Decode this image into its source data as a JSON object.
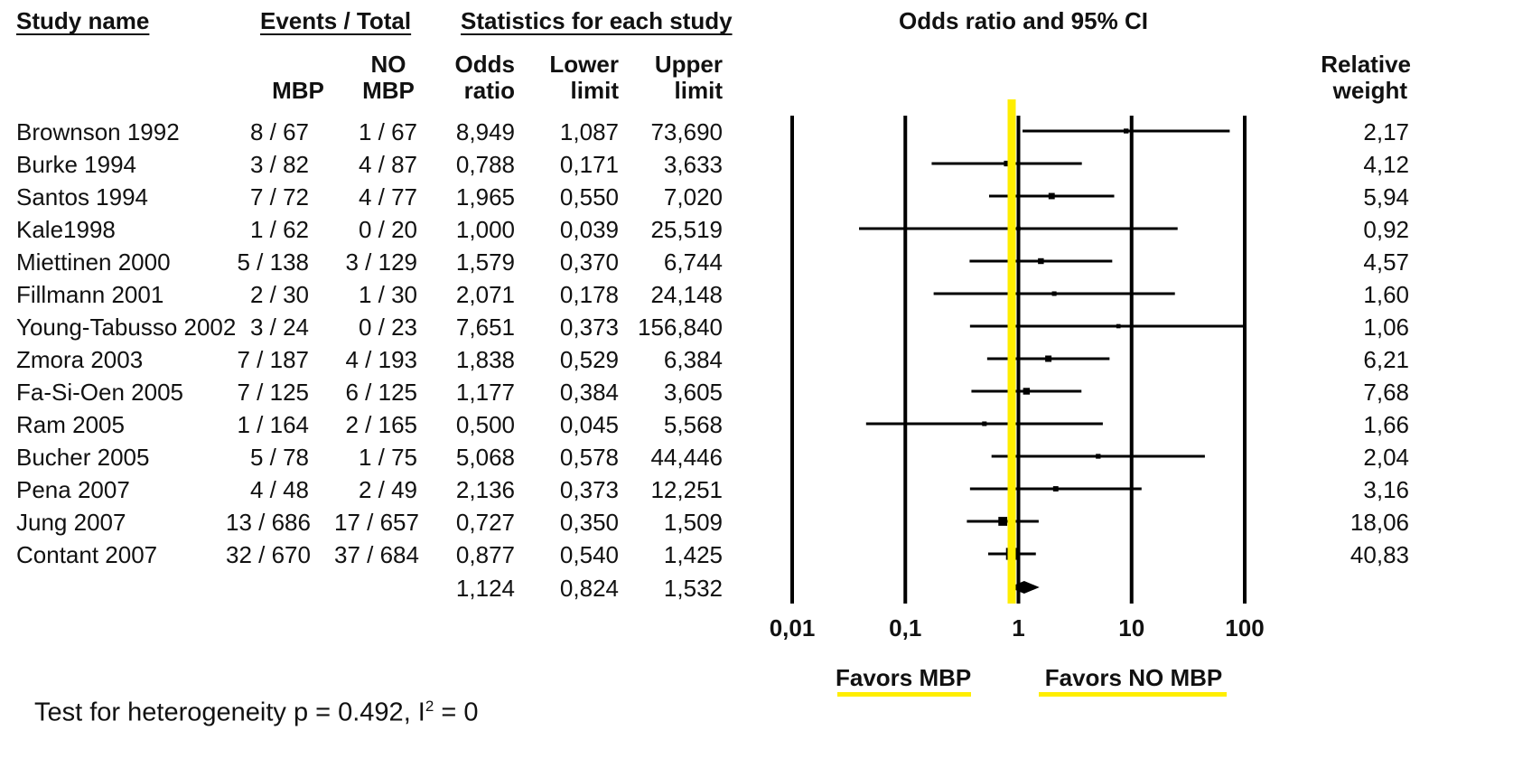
{
  "headers": {
    "study_name": "Study name",
    "events_total": "Events / Total",
    "stats": "Statistics for each study",
    "plot_title": "Odds ratio and 95% CI",
    "mbp": "MBP",
    "no": "NO",
    "no_mbp": "MBP",
    "odds_1": "Odds",
    "odds_2": "ratio",
    "lower_1": "Lower",
    "lower_2": "limit",
    "upper_1": "Upper",
    "upper_2": "limit",
    "rel_1": "Relative",
    "rel_2": "weight"
  },
  "rows": [
    {
      "study": "Brownson 1992",
      "mbp": "8 / 67",
      "no_mbp": "1 / 67",
      "or": "8,949",
      "lower": "1,087",
      "upper": "73,690",
      "weight": "2,17"
    },
    {
      "study": "Burke 1994",
      "mbp": "3 / 82",
      "no_mbp": "4 / 87",
      "or": "0,788",
      "lower": "0,171",
      "upper": "3,633",
      "weight": "4,12"
    },
    {
      "study": "Santos 1994",
      "mbp": "7 / 72",
      "no_mbp": "4 / 77",
      "or": "1,965",
      "lower": "0,550",
      "upper": "7,020",
      "weight": "5,94"
    },
    {
      "study": "Kale1998",
      "mbp": "1 / 62",
      "no_mbp": "0 / 20",
      "or": "1,000",
      "lower": "0,039",
      "upper": "25,519",
      "weight": "0,92"
    },
    {
      "study": "Miettinen 2000",
      "mbp": "5 / 138",
      "no_mbp": "3 / 129",
      "or": "1,579",
      "lower": "0,370",
      "upper": "6,744",
      "weight": "4,57"
    },
    {
      "study": "Fillmann 2001",
      "mbp": "2 / 30",
      "no_mbp": "1 / 30",
      "or": "2,071",
      "lower": "0,178",
      "upper": "24,148",
      "weight": "1,60"
    },
    {
      "study": "Young-Tabusso 2002",
      "mbp": "3 / 24",
      "no_mbp": "0 / 23",
      "or": "7,651",
      "lower": "0,373",
      "upper": "156,840",
      "weight": "1,06"
    },
    {
      "study": "Zmora 2003",
      "mbp": "7 / 187",
      "no_mbp": "4 / 193",
      "or": "1,838",
      "lower": "0,529",
      "upper": "6,384",
      "weight": "6,21"
    },
    {
      "study": "Fa-Si-Oen 2005",
      "mbp": "7 / 125",
      "no_mbp": "6 / 125",
      "or": "1,177",
      "lower": "0,384",
      "upper": "3,605",
      "weight": "7,68"
    },
    {
      "study": "Ram 2005",
      "mbp": "1 / 164",
      "no_mbp": "2 / 165",
      "or": "0,500",
      "lower": "0,045",
      "upper": "5,568",
      "weight": "1,66"
    },
    {
      "study": "Bucher 2005",
      "mbp": "5 / 78",
      "no_mbp": "1 / 75",
      "or": "5,068",
      "lower": "0,578",
      "upper": "44,446",
      "weight": "2,04"
    },
    {
      "study": "Pena 2007",
      "mbp": "4 / 48",
      "no_mbp": "2 / 49",
      "or": "2,136",
      "lower": "0,373",
      "upper": "12,251",
      "weight": "3,16"
    },
    {
      "study": "Jung 2007",
      "mbp": "13 / 686",
      "no_mbp": "17 / 657",
      "or": "0,727",
      "lower": "0,350",
      "upper": "1,509",
      "weight": "18,06"
    },
    {
      "study": "Contant 2007",
      "mbp": "32 / 670",
      "no_mbp": "37 / 684",
      "or": "0,877",
      "lower": "0,540",
      "upper": "1,425",
      "weight": "40,83"
    }
  ],
  "summary": {
    "or": "1,124",
    "lower": "0,824",
    "upper": "1,532"
  },
  "axis_labels": [
    "0,01",
    "0,1",
    "1",
    "10",
    "100"
  ],
  "favors_left": "Favors MBP",
  "favors_right": "Favors NO MBP",
  "heterogeneity_prefix": "Test for heterogeneity  p = 0.492, I",
  "heterogeneity_sup": "2",
  "heterogeneity_suffix": " =  0",
  "colors": {
    "highlight": "#ffee00",
    "ink": "#000000"
  },
  "chart_data": {
    "type": "scatter",
    "title": "Odds ratio and 95% CI",
    "xscale": "log",
    "xlim": [
      0.01,
      100
    ],
    "xticks": [
      0.01,
      0.1,
      1,
      10,
      100
    ],
    "grid": true,
    "reference_line": 1,
    "studies": [
      {
        "name": "Brownson 1992",
        "or": 8.949,
        "lower": 1.087,
        "upper": 73.69,
        "weight": 2.17
      },
      {
        "name": "Burke 1994",
        "or": 0.788,
        "lower": 0.171,
        "upper": 3.633,
        "weight": 4.12
      },
      {
        "name": "Santos 1994",
        "or": 1.965,
        "lower": 0.55,
        "upper": 7.02,
        "weight": 5.94
      },
      {
        "name": "Kale1998",
        "or": 1.0,
        "lower": 0.039,
        "upper": 25.519,
        "weight": 0.92
      },
      {
        "name": "Miettinen 2000",
        "or": 1.579,
        "lower": 0.37,
        "upper": 6.744,
        "weight": 4.57
      },
      {
        "name": "Fillmann 2001",
        "or": 2.071,
        "lower": 0.178,
        "upper": 24.148,
        "weight": 1.6
      },
      {
        "name": "Young-Tabusso 2002",
        "or": 7.651,
        "lower": 0.373,
        "upper": 156.84,
        "weight": 1.06
      },
      {
        "name": "Zmora 2003",
        "or": 1.838,
        "lower": 0.529,
        "upper": 6.384,
        "weight": 6.21
      },
      {
        "name": "Fa-Si-Oen 2005",
        "or": 1.177,
        "lower": 0.384,
        "upper": 3.605,
        "weight": 7.68
      },
      {
        "name": "Ram 2005",
        "or": 0.5,
        "lower": 0.045,
        "upper": 5.568,
        "weight": 1.66
      },
      {
        "name": "Bucher 2005",
        "or": 5.068,
        "lower": 0.578,
        "upper": 44.446,
        "weight": 2.04
      },
      {
        "name": "Pena 2007",
        "or": 2.136,
        "lower": 0.373,
        "upper": 12.251,
        "weight": 3.16
      },
      {
        "name": "Jung 2007",
        "or": 0.727,
        "lower": 0.35,
        "upper": 1.509,
        "weight": 18.06
      },
      {
        "name": "Contant 2007",
        "or": 0.877,
        "lower": 0.54,
        "upper": 1.425,
        "weight": 40.83
      }
    ],
    "summary": {
      "or": 1.124,
      "lower": 0.824,
      "upper": 1.532
    }
  }
}
